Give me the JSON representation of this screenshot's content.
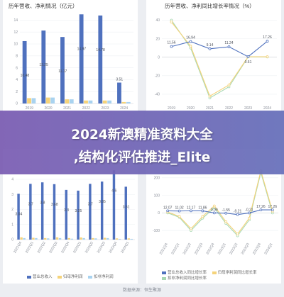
{
  "overlay": {
    "line1": "2024新澳精准资料大全",
    "line2": ",结构化评估推进_Elite"
  },
  "source_text": "数据来源：恒生聚源",
  "chart_data": [
    {
      "type": "bar",
      "title": "历年营收、净利情况（亿元）",
      "categories": [
        "2019",
        "2020",
        "2021",
        "2022",
        "2023",
        "2024"
      ],
      "y_ticks": [
        "0",
        "2",
        "4",
        "6",
        "8",
        "10",
        "12",
        "14"
      ],
      "ylim": [
        0,
        15
      ],
      "series": [
        {
          "color": "#4f71be",
          "values": [
            10.48,
            12.25,
            11.17,
            14.97,
            14.78,
            3.51
          ]
        },
        {
          "color": "#f5d37a",
          "values": [
            0.9,
            1.0,
            0.7,
            0.5,
            0.5,
            0.25
          ]
        },
        {
          "color": "#a9d3f0",
          "values": [
            0.9,
            1.0,
            0.7,
            0.5,
            0.5,
            0.25
          ]
        }
      ],
      "data_labels": [
        "10.48",
        "12.25",
        "11.17",
        "14.97",
        "14.78",
        "3.51"
      ]
    },
    {
      "type": "line",
      "title": "历年营收、净利同比增长率情况（%）",
      "categories": [
        "2019",
        "2020",
        "2021",
        "2022",
        "2023",
        "2024"
      ],
      "y_ticks": [
        "40",
        "20",
        "0",
        "-20",
        "-40"
      ],
      "ylim": [
        -50,
        45
      ],
      "series": [
        {
          "color": "#4f71be",
          "values": [
            11.56,
            16.94,
            9.14,
            11.24,
            0.61,
            17.26
          ]
        },
        {
          "color": "#f5d37a",
          "values": [
            38,
            12,
            -42,
            -30,
            0.5,
            0.5
          ]
        },
        {
          "color": "#a8d8b2",
          "values": [
            40,
            10,
            -44,
            -32,
            0.3,
            0.3
          ]
        }
      ],
      "data_labels": [
        "11.56",
        "16.94",
        "9.14",
        "11.24",
        "0.61",
        "17.26"
      ]
    },
    {
      "type": "bar",
      "categories": [
        "2021Q4",
        "2022Q1",
        "2022Q2",
        "2022Q3",
        "2022Q4",
        "2023Q1",
        "2023Q2",
        "2023Q3",
        "2023Q4",
        "2024Q1"
      ],
      "y_ticks": [
        "4",
        "3",
        "2",
        "1",
        "0"
      ],
      "ylim": [
        0,
        4.8
      ],
      "series": [
        {
          "name": "营业总收入",
          "color": "#4f71be",
          "values": [
            3.04,
            3.7,
            3.8,
            3.68,
            3.3,
            3.25,
            3.7,
            3.85,
            4.6,
            3.51
          ]
        },
        {
          "name": "归母净利润",
          "color": "#f5d37a",
          "values": [
            0.15,
            0.12,
            0.1,
            0.15,
            0.1,
            0.14,
            0.1,
            0.12,
            0.08,
            0.08
          ]
        },
        {
          "name": "扣非净利润",
          "color": "#a9d3f0",
          "values": [
            0.1,
            0.1,
            0.08,
            0.1,
            0.06,
            0.1,
            0.08,
            0.1,
            0.05,
            0.05
          ]
        }
      ],
      "data_labels": [
        "3.04",
        "3.7",
        "3.8",
        "3.68",
        "3.3",
        "3.25",
        "3.7",
        "3.85",
        "4.6",
        "3.51"
      ]
    },
    {
      "type": "line",
      "categories": [
        "2021Q4",
        "2022Q1",
        "2022Q2",
        "2022Q3",
        "2022Q4",
        "2023Q1",
        "2023Q2",
        "2023Q3",
        "2023Q4",
        "2024Q1"
      ],
      "y_ticks": [
        "200",
        "100",
        "0",
        "-100"
      ],
      "ylim": [
        -160,
        260
      ],
      "series": [
        {
          "name": "营业总收入同比增长率",
          "color": "#4f71be",
          "values": [
            12.07,
            11.02,
            12.17,
            11.86,
            0.09,
            -1.55,
            -9.21,
            -0.21,
            17.26,
            17.26
          ]
        },
        {
          "name": "归母净利润同比增长率",
          "color": "#f5d37a",
          "values": [
            5,
            -20,
            -90,
            -20,
            40,
            -50,
            -120,
            -30,
            240,
            10
          ]
        },
        {
          "name": "扣非净利润同比增长率",
          "color": "#a8d8b2",
          "values": [
            0,
            -25,
            -100,
            -30,
            30,
            -60,
            -130,
            -40,
            230,
            0
          ]
        }
      ],
      "data_labels": [
        "12.07",
        "11.02",
        "12.17",
        "11.86",
        "0.09",
        "-1.55",
        "-9.21",
        "-0.21",
        "17.26",
        "17.26"
      ]
    }
  ]
}
